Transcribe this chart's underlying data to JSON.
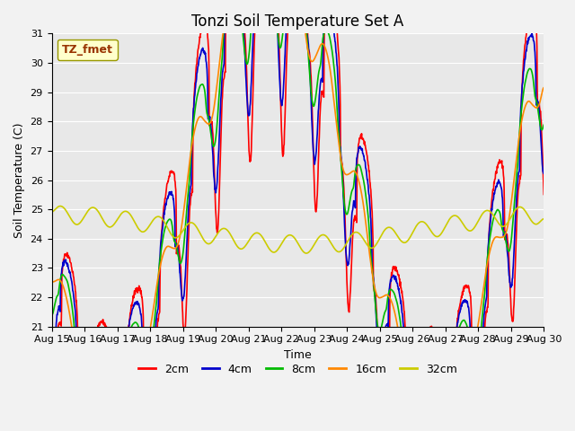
{
  "title": "Tonzi Soil Temperature Set A",
  "xlabel": "Time",
  "ylabel": "Soil Temperature (C)",
  "ylim": [
    21.0,
    31.0
  ],
  "yticks": [
    21.0,
    22.0,
    23.0,
    24.0,
    25.0,
    26.0,
    27.0,
    28.0,
    29.0,
    30.0,
    31.0
  ],
  "xtick_labels": [
    "Aug 15",
    "Aug 16",
    "Aug 17",
    "Aug 18",
    "Aug 19",
    "Aug 20",
    "Aug 21",
    "Aug 22",
    "Aug 23",
    "Aug 24",
    "Aug 25",
    "Aug 26",
    "Aug 27",
    "Aug 28",
    "Aug 29",
    "Aug 30"
  ],
  "legend_label": "TZ_fmet",
  "series_labels": [
    "2cm",
    "4cm",
    "8cm",
    "16cm",
    "32cm"
  ],
  "series_colors": [
    "#ff0000",
    "#0000cc",
    "#00bb00",
    "#ff8800",
    "#cccc00"
  ],
  "axes_bg_color": "#e8e8e8",
  "fig_bg_color": "#f2f2f2",
  "n_days": 15,
  "n_points": 1500,
  "title_fontsize": 12,
  "legend_fontsize": 9,
  "label_fontsize": 9,
  "tick_fontsize": 8
}
